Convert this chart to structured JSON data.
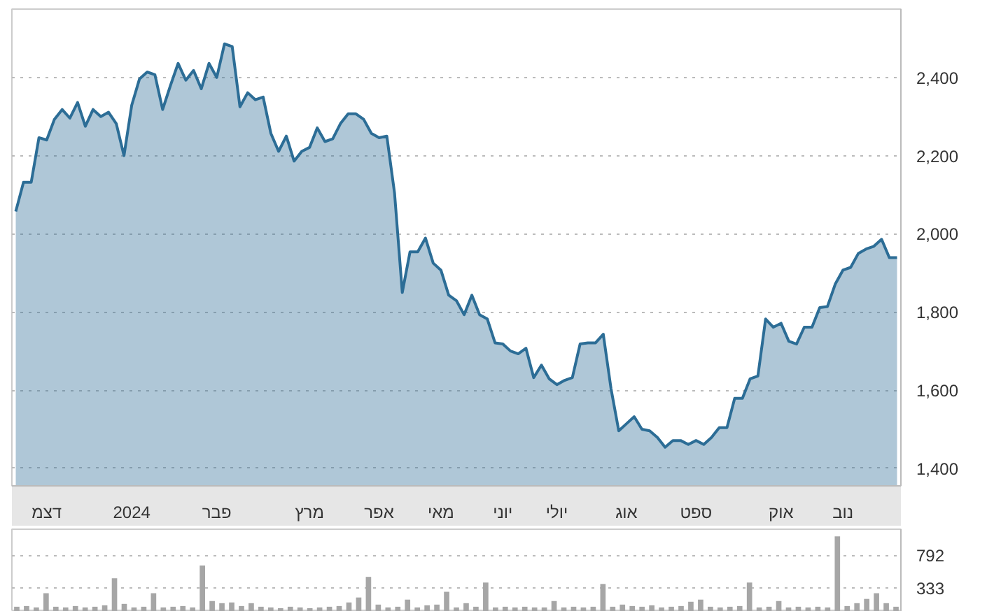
{
  "chart_data": [
    {
      "type": "area",
      "ylim": [
        1355,
        2575
      ],
      "yticks": [
        {
          "value": 1400,
          "label": "1,400"
        },
        {
          "value": 1600,
          "label": "1,600"
        },
        {
          "value": 1800,
          "label": "1,800"
        },
        {
          "value": 2000,
          "label": "2,000"
        },
        {
          "value": 2200,
          "label": "2,200"
        },
        {
          "value": 2400,
          "label": "2,400"
        }
      ],
      "categories": [
        null,
        null,
        null,
        null,
        "דצמ",
        null,
        null,
        null,
        null,
        null,
        null,
        null,
        null,
        null,
        null,
        "2024",
        null,
        null,
        null,
        null,
        null,
        null,
        null,
        null,
        null,
        null,
        "פבר",
        null,
        null,
        null,
        null,
        null,
        null,
        null,
        null,
        null,
        null,
        null,
        "מרץ",
        null,
        null,
        null,
        null,
        null,
        null,
        null,
        null,
        "אפר",
        null,
        null,
        null,
        null,
        null,
        null,
        null,
        "מאי",
        null,
        null,
        null,
        null,
        null,
        null,
        null,
        "יוני",
        null,
        null,
        null,
        null,
        null,
        null,
        "יולי",
        null,
        null,
        null,
        null,
        null,
        null,
        null,
        null,
        "אוג",
        null,
        null,
        null,
        null,
        null,
        null,
        null,
        null,
        "ספט",
        null,
        null,
        null,
        null,
        null,
        null,
        null,
        null,
        null,
        null,
        "אוק",
        null,
        null,
        null,
        null,
        null,
        null,
        null,
        "נוב",
        null,
        null,
        null,
        null,
        null,
        null,
        null
      ],
      "grid": "y",
      "series": [
        {
          "color": "#2c6d96",
          "values": [
            2057,
            2132,
            2132,
            2246,
            2240,
            2293,
            2318,
            2296,
            2336,
            2275,
            2318,
            2300,
            2311,
            2282,
            2200,
            2329,
            2396,
            2414,
            2407,
            2318,
            2379,
            2436,
            2393,
            2418,
            2371,
            2436,
            2400,
            2486,
            2479,
            2325,
            2361,
            2343,
            2350,
            2257,
            2211,
            2250,
            2186,
            2211,
            2221,
            2271,
            2236,
            2243,
            2282,
            2307,
            2307,
            2293,
            2257,
            2246,
            2250,
            2104,
            1850,
            1954,
            1954,
            1989,
            1925,
            1907,
            1843,
            1829,
            1793,
            1843,
            1793,
            1782,
            1721,
            1718,
            1700,
            1693,
            1707,
            1632,
            1664,
            1629,
            1614,
            1625,
            1632,
            1718,
            1721,
            1721,
            1743,
            1604,
            1496,
            1514,
            1532,
            1500,
            1496,
            1479,
            1454,
            1471,
            1471,
            1461,
            1471,
            1461,
            1479,
            1504,
            1504,
            1579,
            1579,
            1629,
            1636,
            1782,
            1761,
            1771,
            1725,
            1718,
            1761,
            1761,
            1811,
            1814,
            1871,
            1907,
            1914,
            1950,
            1961,
            1968,
            1986,
            1939,
            1939
          ]
        }
      ]
    },
    {
      "type": "bar",
      "ylim": [
        0,
        1160
      ],
      "yticks": [
        333,
        792
      ],
      "grid": "y",
      "tick_labels": "y",
      "categories": [
        null,
        null,
        null,
        null,
        null,
        null,
        null,
        null,
        null,
        null,
        null,
        null,
        null,
        null,
        null,
        null,
        null,
        null,
        null,
        null,
        null,
        null,
        null,
        null,
        null,
        null,
        null,
        null,
        null,
        null,
        null,
        null,
        null,
        null,
        null,
        null,
        null,
        null,
        null,
        null,
        null,
        null,
        null,
        null,
        null,
        null,
        null,
        null,
        null,
        null,
        null,
        null,
        null,
        null,
        null,
        null,
        null,
        null,
        null,
        null,
        null,
        null,
        null,
        null,
        null,
        null,
        null,
        null,
        null,
        null,
        null,
        null,
        null,
        null,
        null,
        null,
        null,
        null,
        null,
        null,
        null,
        null,
        null,
        null,
        null,
        null,
        null,
        null,
        null,
        null,
        null
      ],
      "series": [
        {
          "color": "#a6a6a6",
          "values": [
            70,
            80,
            60,
            260,
            70,
            60,
            80,
            60,
            70,
            90,
            470,
            110,
            60,
            70,
            260,
            60,
            70,
            80,
            60,
            650,
            150,
            120,
            130,
            80,
            120,
            70,
            60,
            50,
            70,
            60,
            50,
            60,
            70,
            80,
            130,
            200,
            490,
            100,
            60,
            70,
            170,
            60,
            90,
            100,
            280,
            60,
            120,
            70,
            410,
            60,
            70,
            60,
            70,
            60,
            60,
            150,
            60,
            70,
            60,
            70,
            390,
            70,
            100,
            80,
            70,
            90,
            60,
            70,
            80,
            140,
            170,
            70,
            60,
            70,
            80,
            410,
            60,
            70,
            150,
            60,
            70,
            60,
            70,
            60,
            1060,
            80,
            120,
            180,
            260,
            120,
            70
          ]
        }
      ]
    }
  ]
}
